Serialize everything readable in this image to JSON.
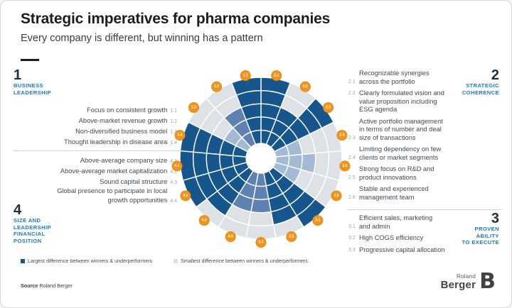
{
  "header": {
    "title": "Strategic imperatives for pharma companies",
    "subtitle": "Every company is different, but winning has a pattern"
  },
  "sections": [
    {
      "num": "1",
      "label": "BUSINESS\nLEADERSHIP",
      "side": "left",
      "items": [
        {
          "id": "1.1",
          "text": "Focus on consistent growth"
        },
        {
          "id": "1.2",
          "text": "Above-market revenue growth"
        },
        {
          "id": "1.3",
          "text": "Non-diversified business model"
        },
        {
          "id": "1.4",
          "text": "Thought leadership in disease area"
        }
      ]
    },
    {
      "num": "2",
      "label": "STRATEGIC\nCOHERENCE",
      "side": "right",
      "items": [
        {
          "id": "2.1",
          "text": "Recognizable synergies\nacross the portfolio",
          "num_line": 1
        },
        {
          "id": "2.2",
          "text": "Clearly formulated vision and\nvalue proposition including\nESG agenda",
          "num_line": 0
        },
        {
          "id": "2.3",
          "text": "Active portfolio management\nin terms of number and deal\nsize of transactions",
          "num_line": 2
        },
        {
          "id": "2.4",
          "text": "Limiting dependency on few\nclients or market segments",
          "num_line": 1
        },
        {
          "id": "2.5",
          "text": "Strong focus on R&D and\nproduct innovations",
          "num_line": 1
        },
        {
          "id": "2.6",
          "text": "Stable and experienced\nmanagement team",
          "num_line": 1
        }
      ]
    },
    {
      "num": "3",
      "label": "PROVEN\nABILITY\nTO EXECUTE",
      "side": "right",
      "items": [
        {
          "id": "3.1",
          "text": "Efficient sales, marketing\nand admin",
          "num_line": 1
        },
        {
          "id": "3.2",
          "text": "High COGS efficiency",
          "num_line": 0
        },
        {
          "id": "3.3",
          "text": "Progressive capital allocation",
          "num_line": 0
        }
      ]
    },
    {
      "num": "4",
      "label": "SIZE AND\nLEADERSHIP\nFINANCIAL\nPOSITION",
      "side": "left",
      "items": [
        {
          "id": "4.1",
          "text": "Above-average company size"
        },
        {
          "id": "4.2",
          "text": "Above-average market capitalization"
        },
        {
          "id": "4.3",
          "text": "Sound capital structure"
        },
        {
          "id": "4.4",
          "text": "Global presence to participate in local\ngrowth opportunities"
        }
      ]
    }
  ],
  "chart_data": {
    "type": "radial-rose",
    "rings_total": 5,
    "note": "17 equal sectors; filled rings (out of 5) show difference between winners and underperformers per imperative",
    "order_clockwise_from_top": [
      "2.1",
      "2.2",
      "2.3",
      "2.4",
      "2.5",
      "2.6",
      "3.1",
      "3.2",
      "3.3",
      "4.4",
      "4.3",
      "4.2",
      "4.1",
      "1.4",
      "1.3",
      "1.2",
      "1.1"
    ],
    "wedges": {
      "1.1": {
        "level": 5,
        "shade": "dark"
      },
      "1.2": {
        "level": 3,
        "shade": "medium"
      },
      "1.3": {
        "level": 2,
        "shade": "light"
      },
      "1.4": {
        "level": 5,
        "shade": "dark"
      },
      "2.1": {
        "level": 5,
        "shade": "dark"
      },
      "2.2": {
        "level": 3,
        "shade": "dark"
      },
      "2.3": {
        "level": 5,
        "shade": "dark"
      },
      "2.4": {
        "level": 2,
        "shade": "light"
      },
      "2.5": {
        "level": 3,
        "shade": "light"
      },
      "2.6": {
        "level": 2,
        "shade": "light"
      },
      "3.1": {
        "level": 5,
        "shade": "dark"
      },
      "3.2": {
        "level": 4,
        "shade": "dark"
      },
      "3.3": {
        "level": 3,
        "shade": "medium"
      },
      "4.1": {
        "level": 5,
        "shade": "dark"
      },
      "4.2": {
        "level": 5,
        "shade": "dark"
      },
      "4.3": {
        "level": 4,
        "shade": "dark"
      },
      "4.4": {
        "level": 3,
        "shade": "medium"
      }
    },
    "colors": {
      "dark": "#16568C",
      "medium": "#5F82B3",
      "light": "#A4B9D3",
      "empty": "#DEE2E7",
      "badge": "#F0941D",
      "badge_text": "#FFFFFF"
    }
  },
  "legend": [
    {
      "shade": "dark",
      "label": "Largest difference between winners & underperformers"
    },
    {
      "shade": "empty",
      "label": "Smallest difference between winners & underperformers"
    }
  ],
  "footer": {
    "source_label": "Source",
    "source_value": "Roland Berger",
    "logo_line1": "Roland",
    "logo_line2": "Berger",
    "logo_mark": "B"
  }
}
